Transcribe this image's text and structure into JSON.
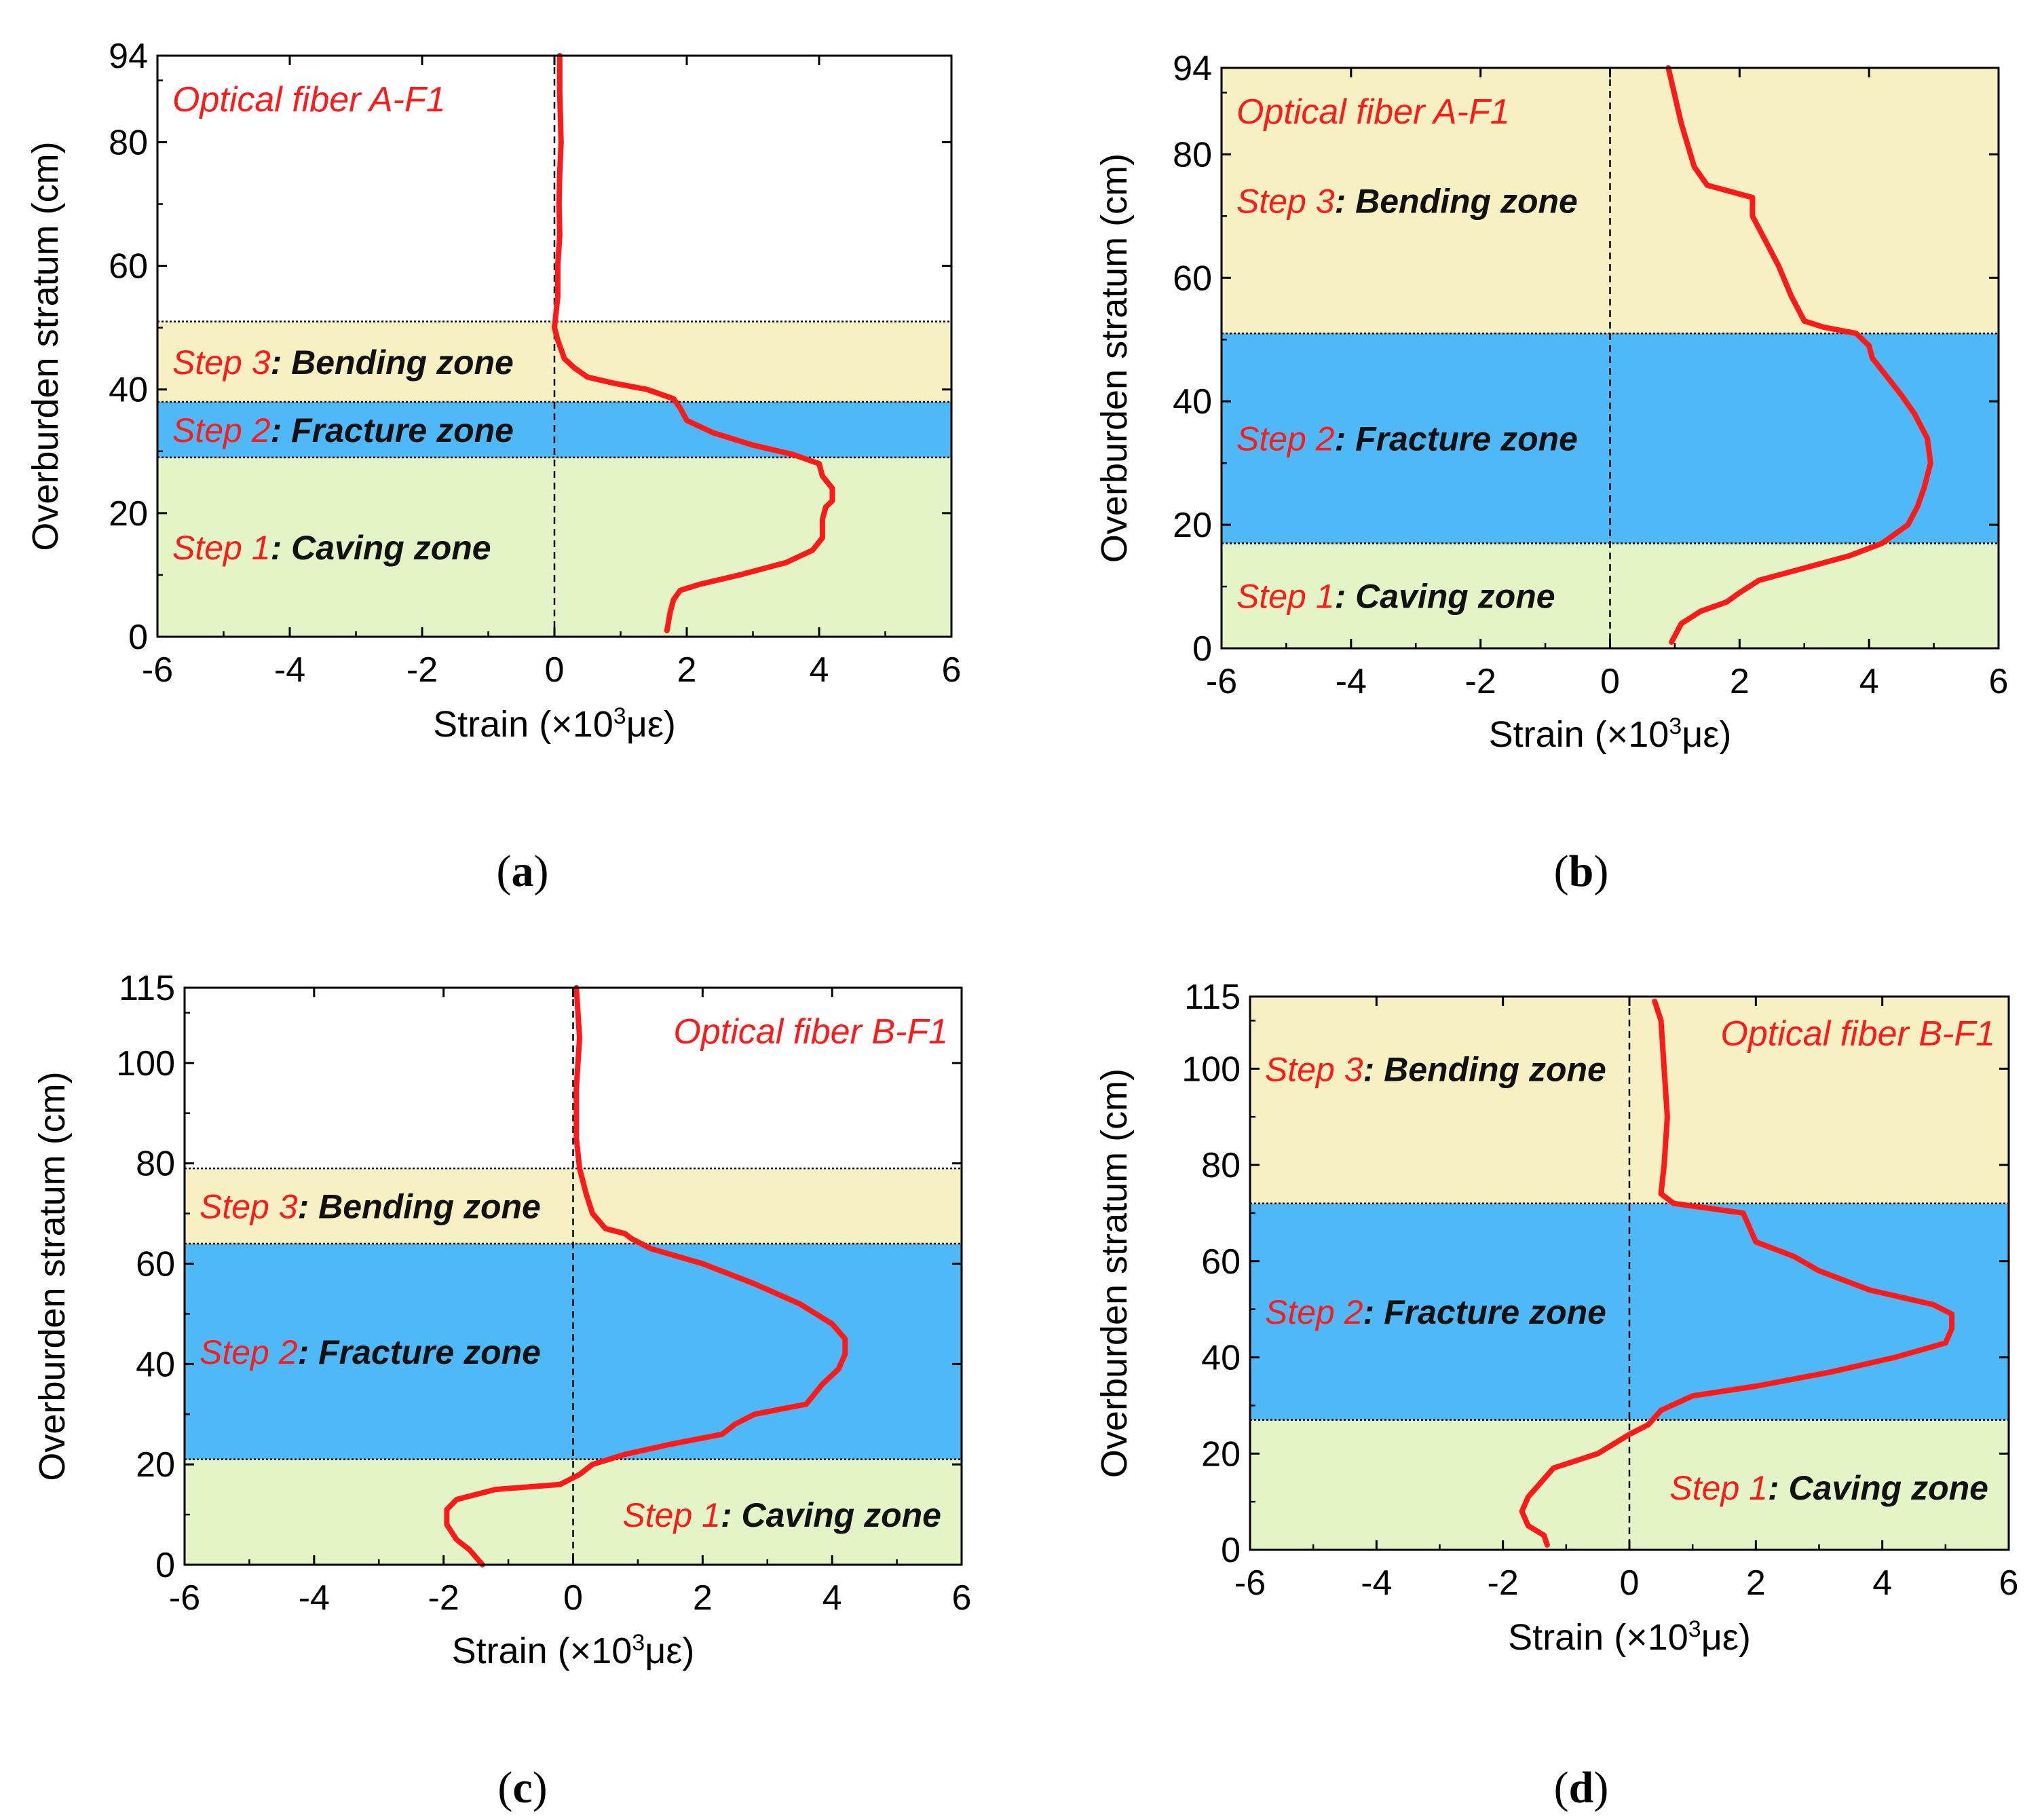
{
  "colors": {
    "curve": "#ff1a1a",
    "step_text": "#ff1a1a",
    "zone_text": "#111111",
    "caving_zone": "#e3f5c7",
    "fracture_zone": "#4fb8f7",
    "bending_zone": "#f7f0c2"
  },
  "chart_data": [
    {
      "type": "line",
      "panel": "a",
      "caption_prefix": "(",
      "caption_letter": "a",
      "caption_suffix": ")",
      "fiber_label": "Optical fiber A-F1",
      "xlabel": "Strain (×10³με)",
      "xlabel_main": "Strain (×10",
      "xlabel_sup": "3",
      "xlabel_end": "με)",
      "ylabel": "Overburden stratum (cm)",
      "xlim": [
        -6,
        6
      ],
      "ylim": [
        0,
        94
      ],
      "xticks": [
        -6,
        -4,
        -2,
        0,
        2,
        4,
        6
      ],
      "yticks": [
        0,
        20,
        40,
        60,
        80,
        94
      ],
      "zones": [
        {
          "step": "Step 1",
          "name": ": Caving zone",
          "kind": "caving",
          "y0": 0,
          "y1": 29
        },
        {
          "step": "Step 2",
          "name": ": Fracture zone",
          "kind": "fracture",
          "y0": 29,
          "y1": 38
        },
        {
          "step": "Step 3",
          "name": ": Bending zone",
          "kind": "bending",
          "y0": 38,
          "y1": 51
        }
      ],
      "series": [
        {
          "name": "Optical fiber A-F1",
          "x": [
            1.7,
            1.75,
            1.8,
            1.9,
            2.2,
            2.8,
            3.5,
            3.9,
            4.05,
            4.05,
            4.1,
            4.2,
            4.2,
            4.05,
            4.0,
            3.6,
            3.0,
            2.4,
            2.0,
            1.9,
            1.8,
            1.4,
            0.9,
            0.5,
            0.3,
            0.15,
            0.05,
            0.0,
            0.05,
            0.05,
            0.08,
            0.07,
            0.08,
            0.1,
            0.08,
            0.08
          ],
          "y": [
            1,
            4,
            6,
            7.5,
            8.5,
            10,
            12,
            14,
            16,
            19,
            21,
            22,
            24,
            26,
            28,
            29.5,
            31,
            33,
            35,
            37,
            38.5,
            40,
            41,
            42,
            43.5,
            45,
            48,
            50,
            55,
            60,
            65,
            70,
            75,
            80,
            88,
            94
          ]
        }
      ]
    },
    {
      "type": "line",
      "panel": "b",
      "caption_prefix": "(",
      "caption_letter": "b",
      "caption_suffix": ")",
      "fiber_label": "Optical fiber A-F1",
      "xlabel": "Strain (×10³με)",
      "xlabel_main": "Strain (×10",
      "xlabel_sup": "3",
      "xlabel_end": "με)",
      "ylabel": "Overburden stratum (cm)",
      "xlim": [
        -6,
        6
      ],
      "ylim": [
        0,
        94
      ],
      "xticks": [
        -6,
        -4,
        -2,
        0,
        2,
        4,
        6
      ],
      "yticks": [
        0,
        20,
        40,
        60,
        80,
        94
      ],
      "zones": [
        {
          "step": "Step 1",
          "name": ": Caving zone",
          "kind": "caving",
          "y0": 0,
          "y1": 17
        },
        {
          "step": "Step 2",
          "name": ": Fracture zone",
          "kind": "fracture",
          "y0": 17,
          "y1": 51
        },
        {
          "step": "Step 3",
          "name": ": Bending zone",
          "kind": "bending",
          "y0": 51,
          "y1": 94
        }
      ],
      "series": [
        {
          "name": "Optical fiber A-F1",
          "x": [
            0.95,
            1.1,
            1.4,
            1.8,
            2.0,
            2.3,
            3.0,
            3.7,
            4.2,
            4.6,
            4.75,
            4.85,
            4.95,
            4.9,
            4.7,
            4.5,
            4.2,
            4.05,
            4.0,
            3.8,
            3.3,
            3.0,
            2.8,
            2.6,
            2.4,
            2.2,
            2.2,
            1.5,
            1.3,
            1.1,
            0.9
          ],
          "y": [
            1,
            4,
            6,
            7.5,
            9,
            11,
            13,
            15,
            17,
            20,
            23,
            26,
            30,
            34,
            38,
            41,
            45,
            47,
            49,
            51,
            52,
            53,
            57,
            62,
            66,
            70,
            73,
            75,
            78,
            85,
            94
          ]
        }
      ]
    },
    {
      "type": "line",
      "panel": "c",
      "caption_prefix": "(",
      "caption_letter": "c",
      "caption_suffix": ")",
      "fiber_label": "Optical fiber B-F1",
      "xlabel": "Strain (×10³με)",
      "xlabel_main": "Strain (×10",
      "xlabel_sup": "3",
      "xlabel_end": "με)",
      "ylabel": "Overburden stratum (cm)",
      "xlim": [
        -6,
        6
      ],
      "ylim": [
        0,
        115
      ],
      "xticks": [
        -6,
        -4,
        -2,
        0,
        2,
        4,
        6
      ],
      "yticks": [
        0,
        20,
        40,
        60,
        80,
        100,
        115
      ],
      "zones": [
        {
          "step": "Step 1",
          "name": ": Caving zone",
          "kind": "caving",
          "y0": 0,
          "y1": 21
        },
        {
          "step": "Step 2",
          "name": ": Fracture zone",
          "kind": "fracture",
          "y0": 21,
          "y1": 64
        },
        {
          "step": "Step 3",
          "name": ": Bending zone",
          "kind": "bending",
          "y0": 64,
          "y1": 79
        }
      ],
      "series": [
        {
          "name": "Optical fiber B-F1",
          "x": [
            -1.4,
            -1.6,
            -1.8,
            -1.95,
            -1.95,
            -1.8,
            -1.2,
            -0.2,
            0.1,
            0.3,
            0.8,
            1.5,
            2.3,
            2.5,
            2.8,
            3.6,
            3.85,
            4.1,
            4.2,
            4.2,
            4.0,
            3.5,
            2.8,
            2.0,
            1.2,
            0.9,
            0.8,
            0.5,
            0.3,
            0.2,
            0.1,
            0.05,
            0.05,
            0.1,
            0.05
          ],
          "y": [
            0,
            3,
            5,
            8,
            11,
            13,
            15,
            16,
            18,
            20,
            22,
            24,
            26,
            28,
            30,
            32,
            36,
            39,
            42,
            45,
            48,
            52,
            56,
            60,
            63,
            65,
            66,
            67,
            70,
            74,
            79,
            85,
            95,
            105,
            115
          ]
        }
      ]
    },
    {
      "type": "line",
      "panel": "d",
      "caption_prefix": "(",
      "caption_letter": "d",
      "caption_suffix": ")",
      "fiber_label": "Optical fiber B-F1",
      "xlabel": "Strain (×10³με)",
      "xlabel_main": "Strain (×10",
      "xlabel_sup": "3",
      "xlabel_end": "με)",
      "ylabel": "Overburden stratum (cm)",
      "xlim": [
        -6,
        6
      ],
      "ylim": [
        0,
        115
      ],
      "xticks": [
        -6,
        -4,
        -2,
        0,
        2,
        4,
        6
      ],
      "yticks": [
        0,
        20,
        40,
        60,
        80,
        100,
        115
      ],
      "zones": [
        {
          "step": "Step 1",
          "name": ": Caving zone",
          "kind": "caving",
          "y0": 0,
          "y1": 27
        },
        {
          "step": "Step 2",
          "name": ": Fracture zone",
          "kind": "fracture",
          "y0": 27,
          "y1": 72
        },
        {
          "step": "Step 3",
          "name": ": Bending zone",
          "kind": "bending",
          "y0": 72,
          "y1": 115
        }
      ],
      "series": [
        {
          "name": "Optical fiber B-F1",
          "x": [
            -1.3,
            -1.35,
            -1.6,
            -1.7,
            -1.6,
            -1.4,
            -1.2,
            -0.5,
            0.0,
            0.3,
            0.5,
            1.0,
            2.0,
            3.2,
            4.2,
            5.0,
            5.1,
            5.1,
            4.8,
            3.8,
            3.0,
            2.6,
            2.2,
            2.0,
            1.9,
            1.8,
            0.7,
            0.5,
            0.55,
            0.6,
            0.55,
            0.5,
            0.4
          ],
          "y": [
            1,
            3,
            5,
            8,
            11,
            14,
            17,
            20,
            24,
            26,
            29,
            32,
            34,
            37,
            40,
            43,
            46,
            49,
            51,
            54,
            58,
            61,
            63,
            64,
            67,
            70,
            72,
            74,
            80,
            90,
            100,
            110,
            114
          ]
        }
      ]
    }
  ]
}
